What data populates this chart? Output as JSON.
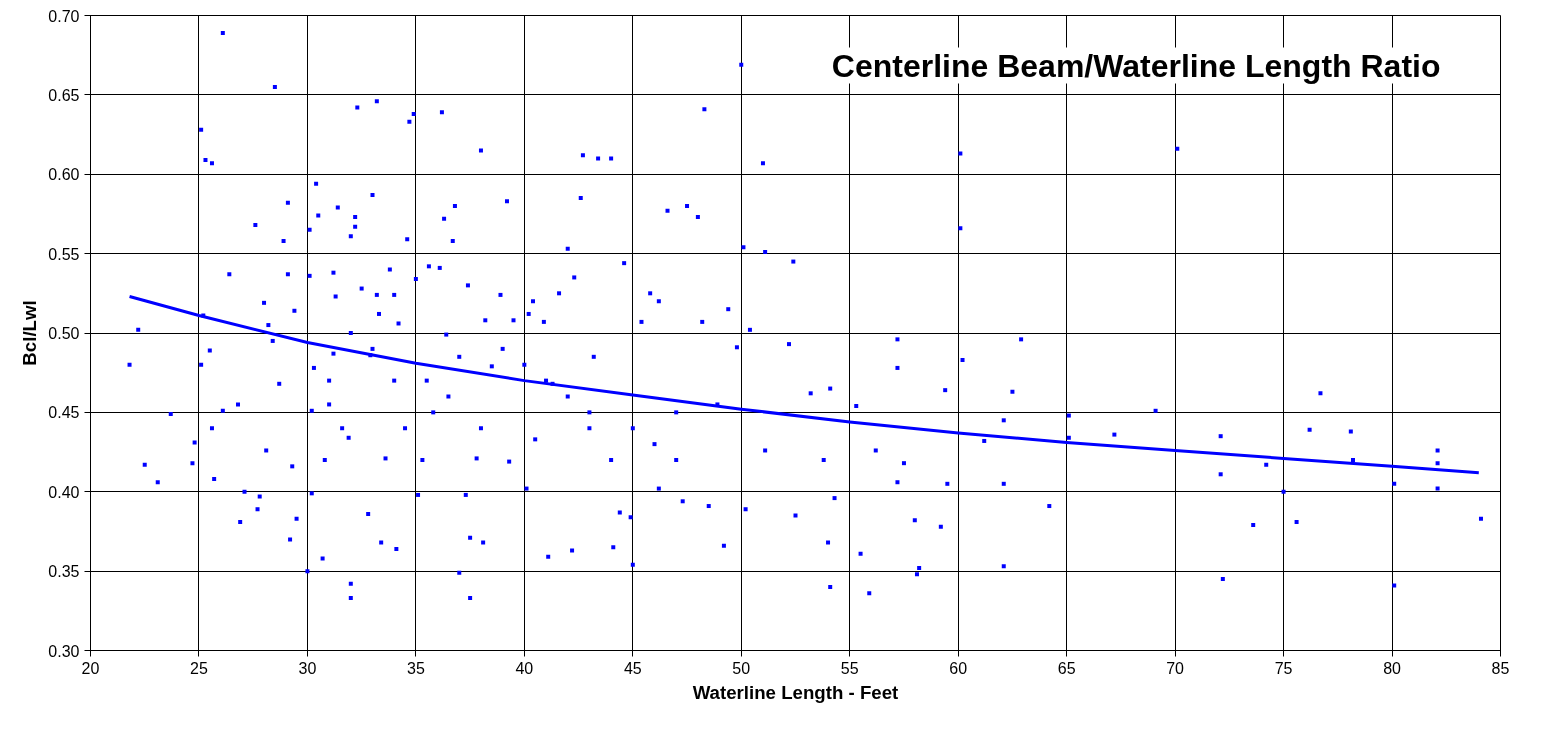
{
  "chart_data": {
    "type": "scatter",
    "title": "Centerline Beam/Waterline Length Ratio",
    "xlabel": "Waterline Length - Feet",
    "ylabel": "Bcl/Lwl",
    "xlim": [
      20,
      85
    ],
    "xticks": [
      20,
      25,
      30,
      35,
      40,
      45,
      50,
      55,
      60,
      65,
      70,
      75,
      80,
      85
    ],
    "ylim": [
      0.3,
      0.7
    ],
    "yticks": [
      {
        "value": 0.3,
        "label": "0.30"
      },
      {
        "value": 0.35,
        "label": "0.35"
      },
      {
        "value": 0.4,
        "label": "0.40"
      },
      {
        "value": 0.45,
        "label": "0.45"
      },
      {
        "value": 0.5,
        "label": "0.50"
      },
      {
        "value": 0.55,
        "label": "0.55"
      },
      {
        "value": 0.6,
        "label": "0.60"
      },
      {
        "value": 0.65,
        "label": "0.65"
      },
      {
        "value": 0.7,
        "label": "0.70"
      }
    ],
    "grid": true,
    "series": [
      {
        "color": "#0000ff",
        "marker": "square",
        "x": [
          21.8,
          22.2,
          22.5,
          23.1,
          23.7,
          24.7,
          24.8,
          25.1,
          25.1,
          25.2,
          25.3,
          25.5,
          25.6,
          25.6,
          25.7,
          26.1,
          26.1,
          26.4,
          26.8,
          26.9,
          27.1,
          27.6,
          27.7,
          27.8,
          28.0,
          28.1,
          28.2,
          28.4,
          28.5,
          28.7,
          28.9,
          29.1,
          29.1,
          29.2,
          29.3,
          29.5,
          29.4,
          30.0,
          30.1,
          30.1,
          30.2,
          30.2,
          30.3,
          30.4,
          30.5,
          30.7,
          30.8,
          31.0,
          31.2,
          31.2,
          31.3,
          31.4,
          31.6,
          31.9,
          32.0,
          32.0,
          32.0,
          32.2,
          32.2,
          32.3,
          32.5,
          32.8,
          32.9,
          33.0,
          33.2,
          33.2,
          33.3,
          33.4,
          33.6,
          33.8,
          34.0,
          34.1,
          34.2,
          34.5,
          34.6,
          34.7,
          34.9,
          35.0,
          35.1,
          35.3,
          35.6,
          35.8,
          36.1,
          36.2,
          36.3,
          36.4,
          36.7,
          36.8,
          37.0,
          37.3,
          37.4,
          37.5,
          37.5,
          37.8,
          38.0,
          38.1,
          38.2,
          38.5,
          38.9,
          39.2,
          39.3,
          39.5,
          40.1,
          40.2,
          40.4,
          40.5,
          40.9,
          41.1,
          41.3,
          41.6,
          42.0,
          42.2,
          42.3,
          42.6,
          42.7,
          43.0,
          43.2,
          43.4,
          44.0,
          44.1,
          44.4,
          44.6,
          44.9,
          45.0,
          45.4,
          45.8,
          46.2,
          46.2,
          46.6,
          47.0,
          47.3,
          47.5,
          48.0,
          48.3,
          48.2,
          48.5,
          48.9,
          49.2,
          49.4,
          49.8,
          50.0,
          50.1,
          50.2,
          50.4,
          51.0,
          51.1,
          51.1,
          52.2,
          52.4,
          52.5,
          53.2,
          53.8,
          54.0,
          54.1,
          54.1,
          54.3,
          55.3,
          55.5,
          55.9,
          56.2,
          57.2,
          57.2,
          57.2,
          57.5,
          58.0,
          58.2,
          58.1,
          59.2,
          59.4,
          59.5,
          60.1,
          60.1,
          60.2,
          61.2,
          62.1,
          62.1,
          62.1,
          62.5,
          62.9,
          64.2,
          65.1,
          65.1,
          67.2,
          69.1,
          70.1,
          72.1,
          72.1,
          72.2,
          73.6,
          74.2,
          75.0,
          75.6,
          76.2,
          76.7,
          78.1,
          78.2,
          80.1,
          80.1,
          82.1,
          82.1,
          82.1,
          84.1,
          35.5,
          36.5,
          38.0,
          39.0,
          40.0,
          41.0,
          42.0,
          43.0,
          44.0,
          45.0,
          46.0,
          47.0,
          33.0,
          32.0,
          31.0,
          34.0,
          37.0
        ],
        "values": [
          0.48,
          0.502,
          0.417,
          0.406,
          0.449,
          0.418,
          0.431,
          0.628,
          0.48,
          0.511,
          0.609,
          0.489,
          0.607,
          0.44,
          0.408,
          0.689,
          0.451,
          0.537,
          0.455,
          0.381,
          0.4,
          0.568,
          0.389,
          0.397,
          0.519,
          0.426,
          0.505,
          0.495,
          0.655,
          0.468,
          0.558,
          0.582,
          0.537,
          0.37,
          0.416,
          0.383,
          0.514,
          0.35,
          0.565,
          0.536,
          0.451,
          0.399,
          0.478,
          0.594,
          0.574,
          0.358,
          0.42,
          0.455,
          0.538,
          0.487,
          0.523,
          0.579,
          0.44,
          0.434,
          0.333,
          0.342,
          0.561,
          0.573,
          0.567,
          0.642,
          0.528,
          0.386,
          0.486,
          0.587,
          0.646,
          0.524,
          0.512,
          0.368,
          0.421,
          0.54,
          0.524,
          0.364,
          0.506,
          0.44,
          0.559,
          0.633,
          0.638,
          0.534,
          0.398,
          0.42,
          0.542,
          0.45,
          0.541,
          0.639,
          0.572,
          0.499,
          0.558,
          0.58,
          0.349,
          0.398,
          0.53,
          0.333,
          0.371,
          0.421,
          0.615,
          0.368,
          0.508,
          0.479,
          0.524,
          0.583,
          0.419,
          0.508,
          0.402,
          0.512,
          0.52,
          0.433,
          0.507,
          0.359,
          0.468,
          0.525,
          0.553,
          0.363,
          0.535,
          0.585,
          0.612,
          0.45,
          0.485,
          0.61,
          0.61,
          0.365,
          0.387,
          0.544,
          0.384,
          0.354,
          0.507,
          0.525,
          0.52,
          0.402,
          0.577,
          0.42,
          0.394,
          0.58,
          0.573,
          0.641,
          0.507,
          0.391,
          0.455,
          0.366,
          0.515,
          0.491,
          0.669,
          0.554,
          0.389,
          0.502,
          0.607,
          0.551,
          0.426,
          0.493,
          0.545,
          0.385,
          0.462,
          0.42,
          0.368,
          0.465,
          0.34,
          0.396,
          0.454,
          0.361,
          0.336,
          0.426,
          0.496,
          0.478,
          0.406,
          0.418,
          0.382,
          0.352,
          0.348,
          0.378,
          0.464,
          0.405,
          0.613,
          0.566,
          0.483,
          0.432,
          0.445,
          0.405,
          0.353,
          0.463,
          0.496,
          0.391,
          0.448,
          0.434,
          0.436,
          0.451,
          0.616,
          0.435,
          0.411,
          0.345,
          0.379,
          0.417,
          0.4,
          0.381,
          0.439,
          0.462,
          0.438,
          0.42,
          0.405,
          0.341,
          0.426,
          0.418,
          0.402,
          0.383,
          0.47,
          0.46,
          0.44,
          0.49,
          0.48,
          0.47,
          0.46,
          0.44,
          0.42,
          0.44,
          0.43,
          0.45,
          0.49,
          0.5,
          0.47,
          0.47,
          0.485
        ]
      },
      {
        "type": "line",
        "color": "#0000ff",
        "x": [
          21.8,
          25,
          30,
          35,
          40,
          45,
          50,
          55,
          60,
          65,
          70,
          75,
          80,
          84
        ],
        "values": [
          0.523,
          0.511,
          0.494,
          0.481,
          0.47,
          0.461,
          0.452,
          0.444,
          0.437,
          0.431,
          0.426,
          0.421,
          0.416,
          0.412
        ]
      }
    ]
  }
}
